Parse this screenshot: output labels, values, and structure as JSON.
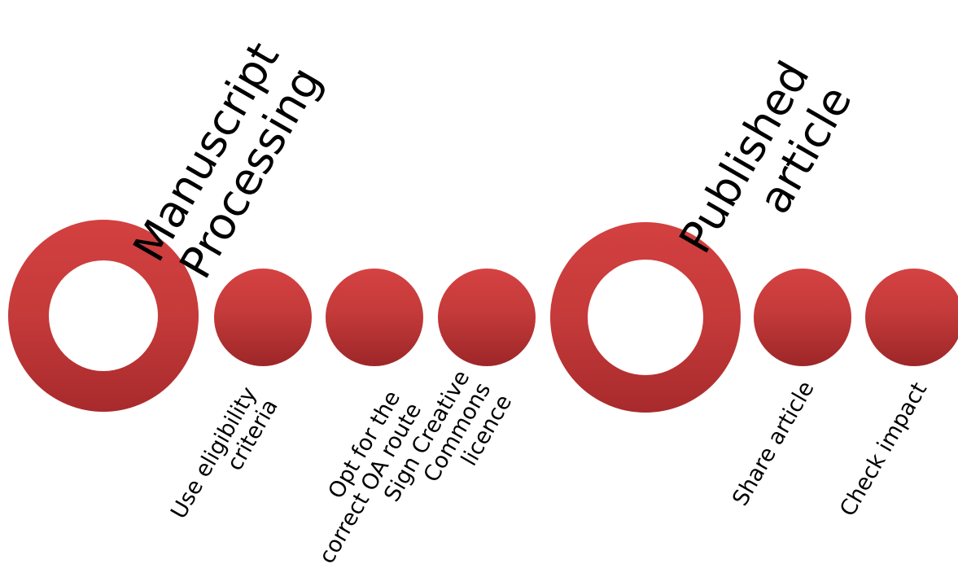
{
  "milestones": [
    {
      "lines": [
        "Manuscript",
        "Processing"
      ]
    },
    {
      "lines": [
        "Published",
        "article"
      ]
    }
  ],
  "steps": [
    {
      "lines": [
        "Use eligibility",
        "criteria"
      ]
    },
    {
      "lines": [
        "Opt for the",
        "correct OA route"
      ]
    },
    {
      "lines": [
        "Sign Creative",
        "Commons",
        "licence"
      ]
    },
    {
      "lines": [
        "Share article"
      ]
    },
    {
      "lines": [
        "Check impact"
      ]
    }
  ],
  "colors": {
    "node_top": "#d34040",
    "node_bottom": "#a82a2c"
  }
}
